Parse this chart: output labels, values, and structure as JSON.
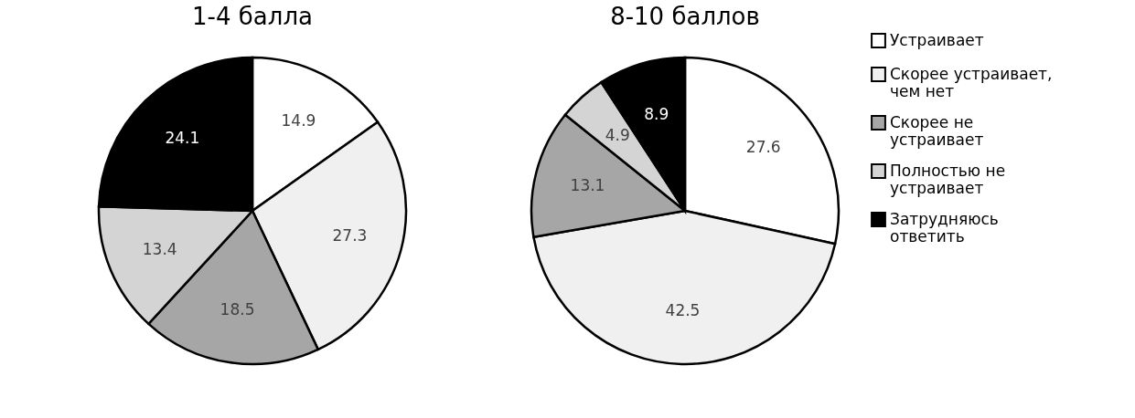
{
  "chart_data": [
    {
      "type": "pie",
      "title": "1-4 балла",
      "categories": [
        null,
        null,
        null,
        null,
        null
      ],
      "values": [
        14.9,
        27.3,
        18.5,
        13.4,
        24.1
      ],
      "colors": [
        "#ffffff",
        "#f0f0f0",
        "#a6a6a6",
        "#d4d4d4",
        "#000000"
      ],
      "data_labels": true,
      "legend": false
    },
    {
      "type": "pie",
      "title": "8-10 баллов",
      "categories": [
        "Устраивает",
        "Скорее устраивает, чем нет",
        "Скорее не устраивает",
        "Полностью не устраивает",
        "Затрудняюсь ответить"
      ],
      "values": [
        27.6,
        42.5,
        13.1,
        4.9,
        8.9
      ],
      "colors": [
        "#ffffff",
        "#f0f0f0",
        "#a6a6a6",
        "#d4d4d4",
        "#000000"
      ],
      "data_labels": true,
      "legend": "right"
    }
  ]
}
